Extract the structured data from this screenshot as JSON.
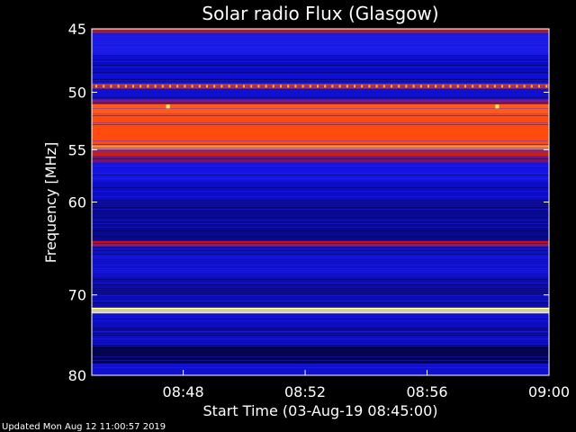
{
  "chart_data": {
    "type": "heatmap",
    "title": "Solar radio Flux (Glasgow)",
    "xlabel": "Start Time (03-Aug-19 08:45:00)",
    "ylabel": "Frequency [MHz]",
    "x_range": [
      "08:45",
      "09:00"
    ],
    "y_range_mhz": [
      45,
      80
    ],
    "y_scale": "log-like (frequency increases downward)",
    "x_ticks": [
      {
        "label": "08:48",
        "minutes": 3
      },
      {
        "label": "08:52",
        "minutes": 7
      },
      {
        "label": "08:56",
        "minutes": 11
      },
      {
        "label": "09:00",
        "minutes": 15
      }
    ],
    "y_ticks": [
      {
        "label": "45",
        "mhz": 45
      },
      {
        "label": "50",
        "mhz": 50
      },
      {
        "label": "55",
        "mhz": 55
      },
      {
        "label": "60",
        "mhz": 60
      },
      {
        "label": "70",
        "mhz": 70
      },
      {
        "label": "80",
        "mhz": 80
      }
    ],
    "colormap": [
      "#000010",
      "#0000ff",
      "#8a0a5a",
      "#ff4400",
      "#ffff80"
    ],
    "bands": [
      {
        "from_mhz": 45.0,
        "to_mhz": 45.3,
        "color": "#d02020"
      },
      {
        "from_mhz": 45.3,
        "to_mhz": 47.0,
        "color": "#1a1ae0"
      },
      {
        "from_mhz": 47.0,
        "to_mhz": 49.0,
        "color": "#0a0ac0"
      },
      {
        "from_mhz": 49.0,
        "to_mhz": 49.3,
        "color": "#1212d8"
      },
      {
        "from_mhz": 49.3,
        "to_mhz": 49.7,
        "color": "#c83020"
      },
      {
        "from_mhz": 49.7,
        "to_mhz": 50.6,
        "color": "#1010d0"
      },
      {
        "from_mhz": 50.6,
        "to_mhz": 51.0,
        "color": "#a01040"
      },
      {
        "from_mhz": 51.0,
        "to_mhz": 51.8,
        "color": "#ff5a1a"
      },
      {
        "from_mhz": 51.8,
        "to_mhz": 54.6,
        "color": "#ff4a10"
      },
      {
        "from_mhz": 54.6,
        "to_mhz": 55.0,
        "color": "#ff8a40"
      },
      {
        "from_mhz": 55.0,
        "to_mhz": 55.6,
        "color": "#c82010"
      },
      {
        "from_mhz": 55.6,
        "to_mhz": 56.2,
        "color": "#801060"
      },
      {
        "from_mhz": 56.2,
        "to_mhz": 58.0,
        "color": "#1414e0"
      },
      {
        "from_mhz": 58.0,
        "to_mhz": 60.5,
        "color": "#0c0cc8"
      },
      {
        "from_mhz": 60.5,
        "to_mhz": 64.0,
        "color": "#080890"
      },
      {
        "from_mhz": 64.0,
        "to_mhz": 64.6,
        "color": "#c01020"
      },
      {
        "from_mhz": 64.6,
        "to_mhz": 68.0,
        "color": "#1010c8"
      },
      {
        "from_mhz": 68.0,
        "to_mhz": 71.5,
        "color": "#0c0cb0"
      },
      {
        "from_mhz": 71.5,
        "to_mhz": 72.2,
        "color": "#ffff90"
      },
      {
        "from_mhz": 72.2,
        "to_mhz": 76.0,
        "color": "#0c0cc0"
      },
      {
        "from_mhz": 76.0,
        "to_mhz": 78.5,
        "color": "#040450"
      },
      {
        "from_mhz": 78.5,
        "to_mhz": 80.0,
        "color": "#1010d0"
      }
    ],
    "grid": false,
    "legend": "none"
  },
  "footer": {
    "updated": "Updated Mon Aug 12 11:00:57 2019"
  }
}
